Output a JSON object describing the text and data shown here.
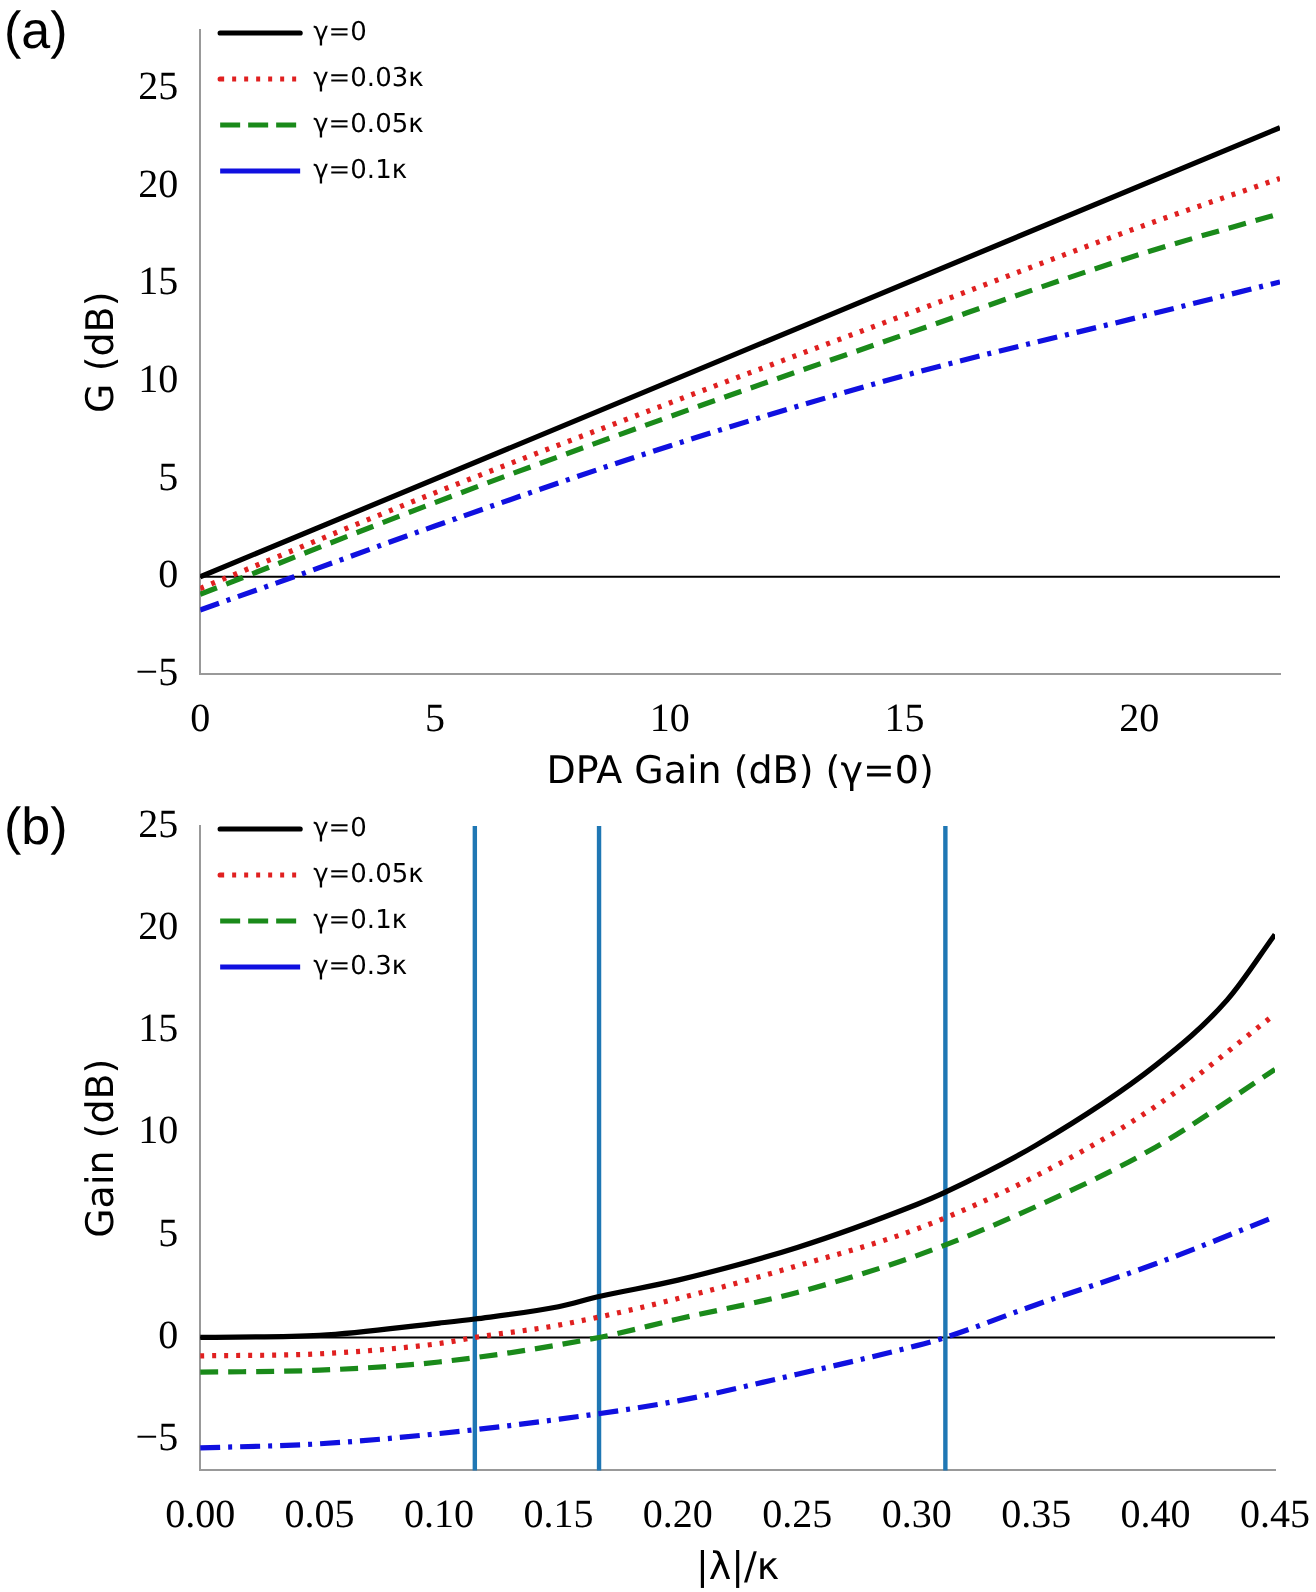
{
  "chart_data": [
    {
      "type": "line",
      "annotations": [
        "(a)"
      ],
      "xlabel": "DPA Gain (dB) (γ=0)",
      "ylabel": "G (dB)",
      "xlim": [
        0,
        23
      ],
      "ylim": [
        -5,
        28
      ],
      "xticks": [
        0,
        5,
        10,
        15,
        20
      ],
      "yticks": [
        -5,
        0,
        5,
        10,
        15,
        20,
        25
      ],
      "grid": false,
      "legend": "top left",
      "marker": "none",
      "ref_lines": [
        {
          "axis": "y",
          "value": 0,
          "color": "#000000",
          "line_style": "solid"
        }
      ],
      "series": [
        {
          "name": "γ=0",
          "color": "#000000",
          "line_style": "solid",
          "x": [
            0,
            23
          ],
          "values": [
            0,
            23
          ]
        },
        {
          "name": "γ=0.03κ",
          "color": "#e02020",
          "line_style": "dotted",
          "x": [
            0,
            5,
            10,
            15,
            20,
            23
          ],
          "values": [
            -0.6,
            4.3,
            8.9,
            13.4,
            17.9,
            20.4
          ]
        },
        {
          "name": "γ=0.05κ",
          "color": "#1a8a1a",
          "line_style": "dashed",
          "x": [
            0,
            5,
            10,
            15,
            20,
            23
          ],
          "values": [
            -0.9,
            3.8,
            8.2,
            12.4,
            16.5,
            18.6
          ]
        },
        {
          "name": "γ=0.1κ",
          "color": "#1010e0",
          "line_style": "dashdot",
          "x": [
            0,
            2,
            5,
            10,
            15,
            20,
            23
          ],
          "values": [
            -1.7,
            0,
            2.6,
            6.7,
            10.3,
            13.3,
            15.1
          ]
        }
      ]
    },
    {
      "type": "line",
      "annotations": [
        "(b)"
      ],
      "xlabel": "|λ|/κ",
      "ylabel": "Gain (dB)",
      "xlim": [
        0,
        0.45
      ],
      "ylim": [
        -6.5,
        25
      ],
      "xticks": [
        {
          "value": 0,
          "label": "0.00"
        },
        0.05,
        {
          "value": 0.1,
          "label": "0.10"
        },
        0.15,
        {
          "value": 0.2,
          "label": "0.20"
        },
        0.25,
        {
          "value": 0.3,
          "label": "0.30"
        },
        0.35,
        {
          "value": 0.4,
          "label": "0.40"
        },
        0.45
      ],
      "yticks": [
        -5,
        0,
        5,
        10,
        15,
        20,
        25
      ],
      "grid": false,
      "legend": "top left",
      "marker": "none",
      "ref_lines": [
        {
          "axis": "y",
          "value": 0,
          "color": "#000000",
          "line_style": "solid"
        },
        {
          "axis": "x",
          "value": 0.115,
          "color": "#1f77b4",
          "line_style": "solid"
        },
        {
          "axis": "x",
          "value": 0.167,
          "color": "#1f77b4",
          "line_style": "solid"
        },
        {
          "axis": "x",
          "value": 0.312,
          "color": "#1f77b4",
          "line_style": "solid"
        }
      ],
      "series": [
        {
          "name": "γ=0",
          "color": "#000000",
          "line_style": "solid",
          "x": [
            0,
            0.05,
            0.1,
            0.115,
            0.15,
            0.167,
            0.2,
            0.25,
            0.3,
            0.312,
            0.35,
            0.4,
            0.43,
            0.45
          ],
          "values": [
            0,
            0.1,
            0.7,
            0.9,
            1.5,
            2,
            2.8,
            4.4,
            6.5,
            7.1,
            9.4,
            13.3,
            16.5,
            19.7
          ]
        },
        {
          "name": "γ=0.05κ",
          "color": "#e02020",
          "line_style": "dotted",
          "x": [
            0,
            0.05,
            0.1,
            0.115,
            0.15,
            0.2,
            0.25,
            0.3,
            0.35,
            0.4,
            0.45
          ],
          "values": [
            -0.9,
            -0.8,
            -0.3,
            0,
            0.6,
            1.9,
            3.5,
            5.3,
            7.9,
            11.3,
            15.8
          ]
        },
        {
          "name": "γ=0.1κ",
          "color": "#1a8a1a",
          "line_style": "dashed",
          "x": [
            0,
            0.05,
            0.1,
            0.167,
            0.2,
            0.25,
            0.3,
            0.35,
            0.4,
            0.45
          ],
          "values": [
            -1.7,
            -1.6,
            -1.2,
            0,
            0.9,
            2.2,
            4,
            6.4,
            9.3,
            13.1
          ]
        },
        {
          "name": "γ=0.3κ",
          "color": "#1010e0",
          "line_style": "dashdot",
          "x": [
            0,
            0.05,
            0.1,
            0.15,
            0.2,
            0.25,
            0.3,
            0.312,
            0.35,
            0.4,
            0.45
          ],
          "values": [
            -5.4,
            -5.2,
            -4.7,
            -4,
            -3.1,
            -1.8,
            -0.4,
            0,
            1.6,
            3.6,
            5.9
          ]
        }
      ]
    }
  ]
}
